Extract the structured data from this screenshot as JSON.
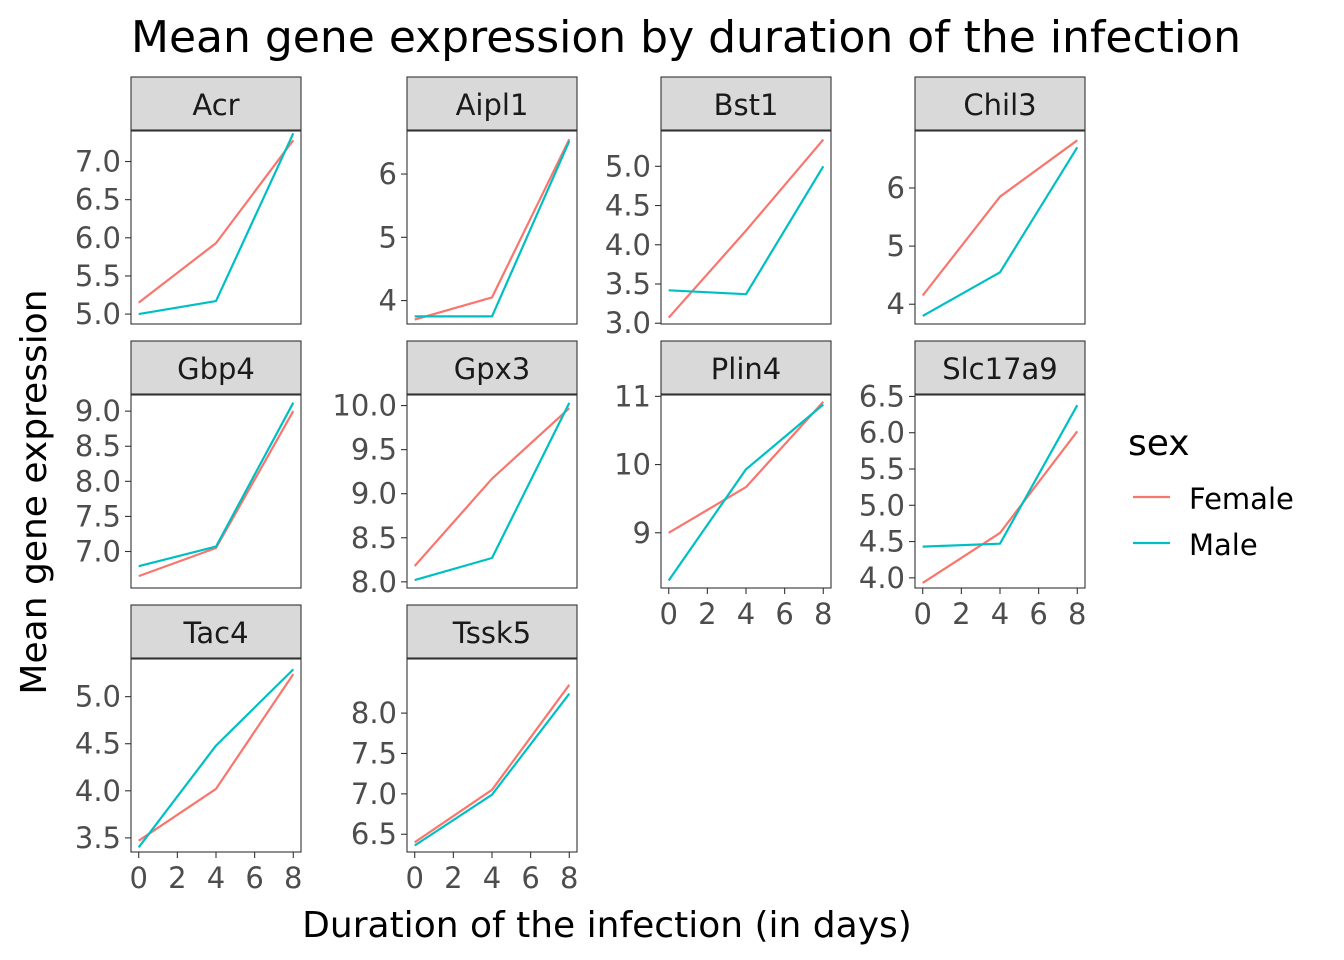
{
  "chart_data": {
    "type": "line",
    "title": "Mean gene expression by duration of the infection",
    "xlabel": "Duration of the infection (in days)",
    "ylabel": "Mean gene expression",
    "legend_title": "sex",
    "legend_position": "right",
    "grid": false,
    "x": [
      0,
      4,
      8
    ],
    "x_ticks": [
      0,
      2,
      4,
      6,
      8
    ],
    "x_tick_labels": [
      "0",
      "2",
      "4",
      "6",
      "8"
    ],
    "xlim": [
      -0.4,
      8.4
    ],
    "colors": {
      "Female": "#F8766D",
      "Male": "#00BFC4"
    },
    "series_names": [
      "Female",
      "Male"
    ],
    "panels": [
      {
        "name": "Acr",
        "ylim": [
          4.87,
          7.4
        ],
        "yticks": [
          5.0,
          5.5,
          6.0,
          6.5,
          7.0
        ],
        "ytick_labels": [
          "5.0",
          "5.5",
          "6.0",
          "6.5",
          "7.0"
        ],
        "series": [
          {
            "name": "Female",
            "values": [
              5.15,
              5.93,
              7.28
            ]
          },
          {
            "name": "Male",
            "values": [
              5.0,
              5.17,
              7.37
            ]
          }
        ]
      },
      {
        "name": "Aipl1",
        "ylim": [
          3.63,
          6.68
        ],
        "yticks": [
          4,
          5,
          6
        ],
        "ytick_labels": [
          "4",
          "5",
          "6"
        ],
        "series": [
          {
            "name": "Female",
            "values": [
              3.7,
              4.05,
              6.55
            ]
          },
          {
            "name": "Male",
            "values": [
              3.75,
              3.75,
              6.52
            ]
          }
        ]
      },
      {
        "name": "Bst1",
        "ylim": [
          2.99,
          5.45
        ],
        "yticks": [
          3.0,
          3.5,
          4.0,
          4.5,
          5.0
        ],
        "ytick_labels": [
          "3.0",
          "3.5",
          "4.0",
          "4.5",
          "5.0"
        ],
        "series": [
          {
            "name": "Female",
            "values": [
              3.07,
              4.18,
              5.34
            ]
          },
          {
            "name": "Male",
            "values": [
              3.42,
              3.37,
              5.0
            ]
          }
        ]
      },
      {
        "name": "Chil3",
        "ylim": [
          3.66,
          6.98
        ],
        "yticks": [
          4,
          5,
          6
        ],
        "ytick_labels": [
          "4",
          "5",
          "6"
        ],
        "series": [
          {
            "name": "Female",
            "values": [
              4.15,
              5.85,
              6.82
            ]
          },
          {
            "name": "Male",
            "values": [
              3.8,
              4.55,
              6.7
            ]
          }
        ]
      },
      {
        "name": "Gbp4",
        "ylim": [
          6.48,
          9.23
        ],
        "yticks": [
          7.0,
          7.5,
          8.0,
          8.5,
          9.0
        ],
        "ytick_labels": [
          "7.0",
          "7.5",
          "8.0",
          "8.5",
          "9.0"
        ],
        "series": [
          {
            "name": "Female",
            "values": [
              6.65,
              7.05,
              9.0
            ]
          },
          {
            "name": "Male",
            "values": [
              6.79,
              7.07,
              9.12
            ]
          }
        ]
      },
      {
        "name": "Gpx3",
        "ylim": [
          7.93,
          10.12
        ],
        "yticks": [
          8.0,
          8.5,
          9.0,
          9.5,
          10.0
        ],
        "ytick_labels": [
          "8.0",
          "8.5",
          "9.0",
          "9.5",
          "10.0"
        ],
        "series": [
          {
            "name": "Female",
            "values": [
              8.18,
              9.17,
              9.97
            ]
          },
          {
            "name": "Male",
            "values": [
              8.02,
              8.27,
              10.03
            ]
          }
        ]
      },
      {
        "name": "Plin4",
        "ylim": [
          8.19,
          11.02
        ],
        "yticks": [
          9,
          10,
          11
        ],
        "ytick_labels": [
          "9",
          "10",
          "11"
        ],
        "series": [
          {
            "name": "Female",
            "values": [
              9.0,
              9.67,
              10.92
            ]
          },
          {
            "name": "Male",
            "values": [
              8.3,
              9.93,
              10.88
            ]
          }
        ]
      },
      {
        "name": "Slc17a9",
        "ylim": [
          3.86,
          6.52
        ],
        "yticks": [
          4.0,
          4.5,
          5.0,
          5.5,
          6.0,
          6.5
        ],
        "ytick_labels": [
          "4.0",
          "4.5",
          "5.0",
          "5.5",
          "6.0",
          "6.5"
        ],
        "series": [
          {
            "name": "Female",
            "values": [
              3.93,
              4.62,
              6.02
            ]
          },
          {
            "name": "Male",
            "values": [
              4.43,
              4.47,
              6.38
            ]
          }
        ]
      },
      {
        "name": "Tac4",
        "ylim": [
          3.35,
          5.4
        ],
        "yticks": [
          3.5,
          4.0,
          4.5,
          5.0
        ],
        "ytick_labels": [
          "3.5",
          "4.0",
          "4.5",
          "5.0"
        ],
        "series": [
          {
            "name": "Female",
            "values": [
              3.47,
              4.02,
              5.24
            ]
          },
          {
            "name": "Male",
            "values": [
              3.4,
              4.48,
              5.29
            ]
          }
        ]
      },
      {
        "name": "Tssk5",
        "ylim": [
          6.28,
          8.67
        ],
        "yticks": [
          6.5,
          7.0,
          7.5,
          8.0
        ],
        "ytick_labels": [
          "6.5",
          "7.0",
          "7.5",
          "8.0"
        ],
        "series": [
          {
            "name": "Female",
            "values": [
              6.4,
              7.05,
              8.35
            ]
          },
          {
            "name": "Male",
            "values": [
              6.36,
              6.99,
              8.24
            ]
          }
        ]
      }
    ]
  }
}
